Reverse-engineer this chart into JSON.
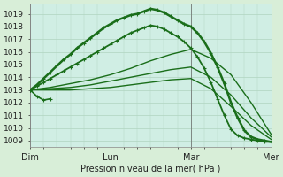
{
  "xlabel": "Pression niveau de la mer( hPa )",
  "bg_color": "#d8eed8",
  "plot_bg_color": "#d0eee4",
  "grid_color": "#b0d4c0",
  "line_color": "#1a6e1a",
  "ylim": [
    1008.5,
    1019.8
  ],
  "yticks": [
    1009,
    1010,
    1011,
    1012,
    1013,
    1014,
    1015,
    1016,
    1017,
    1018,
    1019
  ],
  "xlim": [
    0,
    3.0
  ],
  "days": [
    "Dim",
    "Lun",
    "Mar",
    "Mer"
  ],
  "day_positions": [
    0.0,
    1.0,
    2.0,
    3.0
  ],
  "series": [
    {
      "x": [
        0.0,
        0.083,
        0.167,
        0.25,
        0.333,
        0.417,
        0.5,
        0.583,
        0.667,
        0.75,
        0.833,
        0.917,
        1.0,
        1.083,
        1.167,
        1.25,
        1.333,
        1.417,
        1.5,
        1.583,
        1.667,
        1.75,
        1.833,
        1.917,
        2.0,
        2.083,
        2.167,
        2.25,
        2.333,
        2.417,
        2.5,
        2.583,
        2.667,
        2.75,
        2.833,
        2.917,
        3.0
      ],
      "y": [
        1013.0,
        1013.4,
        1013.9,
        1014.4,
        1014.9,
        1015.4,
        1015.8,
        1016.3,
        1016.7,
        1017.1,
        1017.5,
        1017.9,
        1018.2,
        1018.5,
        1018.7,
        1018.9,
        1019.0,
        1019.2,
        1019.4,
        1019.3,
        1019.1,
        1018.8,
        1018.5,
        1018.2,
        1018.0,
        1017.5,
        1016.8,
        1015.9,
        1014.8,
        1013.5,
        1012.0,
        1010.8,
        1009.8,
        1009.3,
        1009.1,
        1009.0,
        1008.9
      ],
      "lw": 1.8,
      "marker": true
    },
    {
      "x": [
        0.0,
        0.083,
        0.167,
        0.25,
        0.333,
        0.417,
        0.5,
        0.583,
        0.667,
        0.75,
        0.833,
        0.917,
        1.0,
        1.083,
        1.167,
        1.25,
        1.333,
        1.417,
        1.5,
        1.583,
        1.667,
        1.75,
        1.833,
        1.917,
        2.0,
        2.083,
        2.167,
        2.25,
        2.333,
        2.417,
        2.5,
        2.583,
        2.667,
        2.75,
        2.833,
        2.917,
        3.0
      ],
      "y": [
        1013.0,
        1013.3,
        1013.6,
        1013.9,
        1014.2,
        1014.5,
        1014.8,
        1015.1,
        1015.4,
        1015.7,
        1016.0,
        1016.3,
        1016.6,
        1016.9,
        1017.2,
        1017.5,
        1017.7,
        1017.9,
        1018.1,
        1018.0,
        1017.8,
        1017.5,
        1017.2,
        1016.8,
        1016.3,
        1015.6,
        1014.7,
        1013.6,
        1012.3,
        1011.0,
        1009.9,
        1009.4,
        1009.2,
        1009.1,
        1009.0,
        1008.9,
        1008.9
      ],
      "lw": 1.3,
      "marker": true
    },
    {
      "x": [
        0.0,
        0.25,
        0.5,
        0.75,
        1.0,
        1.25,
        1.5,
        1.75,
        2.0,
        2.25,
        2.5,
        2.75,
        3.0
      ],
      "y": [
        1013.0,
        1013.2,
        1013.5,
        1013.8,
        1014.2,
        1014.7,
        1015.3,
        1015.8,
        1016.2,
        1015.5,
        1014.2,
        1012.0,
        1009.5
      ],
      "lw": 1.0,
      "marker": false
    },
    {
      "x": [
        0.0,
        0.25,
        0.5,
        0.75,
        1.0,
        1.25,
        1.5,
        1.75,
        2.0,
        2.25,
        2.5,
        2.75,
        3.0
      ],
      "y": [
        1013.0,
        1013.1,
        1013.2,
        1013.4,
        1013.7,
        1014.0,
        1014.3,
        1014.6,
        1014.8,
        1014.0,
        1012.6,
        1010.8,
        1009.3
      ],
      "lw": 1.0,
      "marker": false
    },
    {
      "x": [
        0.0,
        0.25,
        0.5,
        0.75,
        1.0,
        1.25,
        1.5,
        1.75,
        2.0,
        2.25,
        2.5,
        2.75,
        3.0
      ],
      "y": [
        1013.0,
        1013.0,
        1013.0,
        1013.1,
        1013.2,
        1013.4,
        1013.6,
        1013.8,
        1013.9,
        1013.1,
        1011.7,
        1010.2,
        1009.1
      ],
      "lw": 1.0,
      "marker": false
    },
    {
      "x": [
        0.0,
        0.083,
        0.167,
        0.25
      ],
      "y": [
        1013.0,
        1012.5,
        1012.2,
        1012.3
      ],
      "lw": 1.2,
      "marker": true
    }
  ]
}
